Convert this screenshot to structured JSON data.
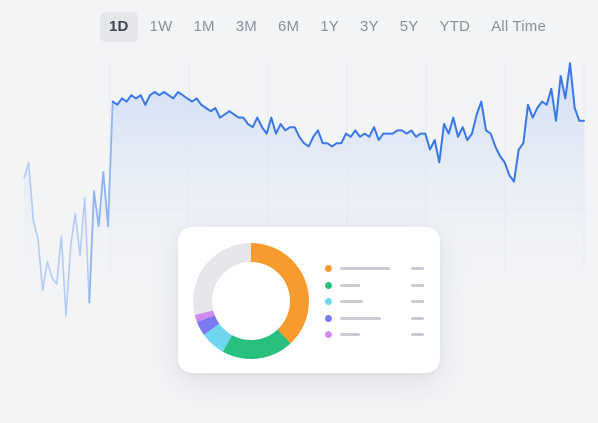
{
  "range_tabs": [
    {
      "label": "1D",
      "active": true
    },
    {
      "label": "1W",
      "active": false
    },
    {
      "label": "1M",
      "active": false
    },
    {
      "label": "3M",
      "active": false
    },
    {
      "label": "6M",
      "active": false
    },
    {
      "label": "1Y",
      "active": false
    },
    {
      "label": "3Y",
      "active": false
    },
    {
      "label": "5Y",
      "active": false
    },
    {
      "label": "YTD",
      "active": false
    },
    {
      "label": "All Time",
      "active": false
    }
  ],
  "colors": {
    "line": "#3a78e6",
    "faded_line": "#b3ccf5",
    "area_top": "#c8d9f7",
    "orange": "#f79b2e",
    "green": "#27c07d",
    "cyan": "#6fd6ef",
    "indigo": "#7b78f2",
    "violet": "#d38bf2",
    "track": "#e4e6ea"
  },
  "allocation": {
    "segments": [
      {
        "value": 0.38,
        "color": "#f79b2e"
      },
      {
        "value": 0.2,
        "color": "#27c07d"
      },
      {
        "value": 0.07,
        "color": "#6fd6ef"
      },
      {
        "value": 0.04,
        "color": "#7b78f2"
      },
      {
        "value": 0.02,
        "color": "#d38bf2"
      },
      {
        "value": 0.29,
        "color": "#e4e6ea"
      }
    ],
    "legend": [
      {
        "color": "#f79b2e",
        "name_bar": 0.72
      },
      {
        "color": "#27c07d",
        "name_bar": 0.28
      },
      {
        "color": "#6fd6ef",
        "name_bar": 0.33
      },
      {
        "color": "#7b78f2",
        "name_bar": 0.58
      },
      {
        "color": "#d38bf2",
        "name_bar": 0.28
      }
    ]
  },
  "chart_data": {
    "type": "line",
    "title": "",
    "xlabel": "",
    "ylabel": "",
    "grid": true,
    "ylim": [
      0,
      100
    ],
    "faded_prefix_points": 14,
    "values": [
      63,
      68,
      50,
      44,
      28,
      37,
      32,
      30,
      45,
      20,
      42,
      52,
      39,
      57,
      24,
      59,
      48,
      65,
      48,
      87,
      86,
      88,
      87,
      89,
      88,
      89,
      86,
      89,
      90,
      89,
      90,
      89,
      88,
      90,
      89,
      88,
      87,
      88,
      86,
      85,
      84,
      85,
      82,
      83,
      84,
      83,
      82,
      82,
      80,
      79,
      82,
      79,
      77,
      82,
      77,
      80,
      78,
      79,
      79,
      76,
      74,
      73,
      76,
      78,
      74,
      74,
      73,
      74,
      74,
      77,
      76,
      78,
      76,
      77,
      76,
      79,
      75,
      77,
      77,
      77,
      78,
      78,
      77,
      78,
      76,
      77,
      77,
      72,
      75,
      68,
      80,
      77,
      82,
      76,
      79,
      75,
      77,
      83,
      87,
      78,
      77,
      73,
      70,
      68,
      64,
      62,
      72,
      74,
      86,
      82,
      85,
      87,
      86,
      91,
      81,
      95,
      88,
      99,
      85,
      81,
      81
    ]
  }
}
